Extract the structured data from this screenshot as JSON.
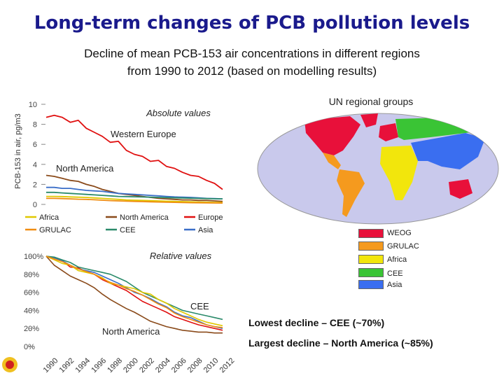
{
  "header": {
    "title": "Long-term changes of PCB pollution levels",
    "subtitle_line1": "Decline of mean PCB-153 air concentrations in different regions",
    "subtitle_line2": "from 1990 to 2012 (based on modelling results)"
  },
  "map": {
    "title": "UN regional groups",
    "legend": [
      {
        "label": "WEOG",
        "color": "#e8103a"
      },
      {
        "label": "GRULAC",
        "color": "#f59a1e"
      },
      {
        "label": "Africa",
        "color": "#f2e60c"
      },
      {
        "label": "CEE",
        "color": "#3ac435"
      },
      {
        "label": "Asia",
        "color": "#3a6ef0"
      }
    ]
  },
  "chart_data": [
    {
      "type": "line",
      "title": "Absolute values",
      "ylabel": "PCB-153 in air, pg/m3",
      "ylim": [
        0,
        10
      ],
      "yticks": [
        "0",
        "2",
        "4",
        "6",
        "8",
        "10"
      ],
      "x": [
        1990,
        1991,
        1992,
        1993,
        1994,
        1995,
        1996,
        1997,
        1998,
        1999,
        2000,
        2001,
        2002,
        2003,
        2004,
        2005,
        2006,
        2007,
        2008,
        2009,
        2010,
        2011,
        2012
      ],
      "annotations": [
        "Western Europe",
        "North America"
      ],
      "series": [
        {
          "name": "Europe",
          "color": "#e01010",
          "values": [
            8.7,
            8.9,
            8.7,
            8.2,
            8.4,
            7.6,
            7.2,
            6.8,
            6.2,
            6.3,
            5.4,
            5.0,
            4.8,
            4.3,
            4.4,
            3.8,
            3.6,
            3.2,
            2.9,
            2.8,
            2.4,
            2.1,
            1.5
          ]
        },
        {
          "name": "North America",
          "color": "#8a4a1a",
          "values": [
            2.9,
            2.8,
            2.6,
            2.4,
            2.3,
            2.0,
            1.8,
            1.5,
            1.3,
            1.1,
            1.0,
            0.9,
            0.8,
            0.7,
            0.6,
            0.55,
            0.5,
            0.45,
            0.45,
            0.4,
            0.4,
            0.35,
            0.3
          ]
        },
        {
          "name": "Asia",
          "color": "#3a6ec8",
          "values": [
            1.7,
            1.7,
            1.6,
            1.6,
            1.5,
            1.4,
            1.35,
            1.3,
            1.2,
            1.1,
            1.05,
            1.0,
            0.95,
            0.9,
            0.85,
            0.8,
            0.75,
            0.72,
            0.7,
            0.65,
            0.6,
            0.58,
            0.55
          ]
        },
        {
          "name": "CEE",
          "color": "#2a8a6a",
          "values": [
            1.2,
            1.2,
            1.15,
            1.1,
            1.05,
            1.0,
            0.95,
            0.9,
            0.85,
            0.8,
            0.78,
            0.76,
            0.74,
            0.72,
            0.7,
            0.68,
            0.66,
            0.64,
            0.62,
            0.6,
            0.58,
            0.56,
            0.55
          ]
        },
        {
          "name": "Africa",
          "color": "#e0c800",
          "values": [
            0.8,
            0.8,
            0.78,
            0.75,
            0.72,
            0.7,
            0.65,
            0.6,
            0.55,
            0.5,
            0.45,
            0.42,
            0.4,
            0.38,
            0.35,
            0.32,
            0.3,
            0.28,
            0.26,
            0.24,
            0.22,
            0.2,
            0.19
          ]
        },
        {
          "name": "GRULAC",
          "color": "#f08c10",
          "values": [
            0.6,
            0.6,
            0.58,
            0.55,
            0.52,
            0.5,
            0.46,
            0.42,
            0.38,
            0.35,
            0.32,
            0.3,
            0.28,
            0.26,
            0.24,
            0.22,
            0.2,
            0.18,
            0.17,
            0.16,
            0.15,
            0.14,
            0.13
          ]
        }
      ]
    },
    {
      "type": "line",
      "title": "Relative values",
      "ylim": [
        0,
        100
      ],
      "yticks": [
        "0%",
        "20%",
        "40%",
        "60%",
        "80%",
        "100%"
      ],
      "xticks": [
        "1990",
        "1992",
        "1994",
        "1996",
        "1998",
        "2000",
        "2002",
        "2004",
        "2006",
        "2008",
        "2010",
        "2012"
      ],
      "x": [
        1990,
        1991,
        1992,
        1993,
        1994,
        1995,
        1996,
        1997,
        1998,
        1999,
        2000,
        2001,
        2002,
        2003,
        2004,
        2005,
        2006,
        2007,
        2008,
        2009,
        2010,
        2011,
        2012
      ],
      "annotations": [
        "CEE",
        "North America"
      ],
      "series": [
        {
          "name": "Europe",
          "color": "#e01010",
          "values": [
            100,
            97,
            95,
            88,
            87,
            83,
            80,
            74,
            70,
            66,
            62,
            56,
            50,
            46,
            42,
            38,
            33,
            30,
            27,
            24,
            22,
            20,
            18
          ]
        },
        {
          "name": "North America",
          "color": "#8a4a1a",
          "values": [
            100,
            90,
            84,
            78,
            74,
            70,
            65,
            58,
            52,
            47,
            42,
            38,
            33,
            28,
            25,
            22,
            20,
            18,
            17,
            16,
            16,
            15,
            15
          ]
        },
        {
          "name": "Asia",
          "color": "#3a6ec8",
          "values": [
            100,
            98,
            95,
            90,
            86,
            84,
            82,
            78,
            74,
            70,
            65,
            60,
            57,
            53,
            48,
            44,
            38,
            34,
            32,
            28,
            24,
            22,
            20
          ]
        },
        {
          "name": "CEE",
          "color": "#2a8a6a",
          "values": [
            100,
            99,
            96,
            93,
            88,
            86,
            84,
            82,
            80,
            76,
            72,
            66,
            60,
            56,
            52,
            48,
            44,
            40,
            38,
            36,
            34,
            32,
            30
          ]
        },
        {
          "name": "Africa",
          "color": "#e0c800",
          "values": [
            100,
            96,
            92,
            90,
            84,
            82,
            80,
            76,
            70,
            68,
            66,
            64,
            60,
            58,
            52,
            48,
            42,
            38,
            34,
            30,
            27,
            25,
            23
          ]
        },
        {
          "name": "GRULAC",
          "color": "#f08c10",
          "values": [
            100,
            97,
            94,
            90,
            86,
            83,
            80,
            75,
            71,
            68,
            64,
            61,
            57,
            52,
            47,
            43,
            37,
            33,
            30,
            27,
            24,
            22,
            21
          ]
        }
      ]
    }
  ],
  "conclusions": {
    "lowest": "Lowest decline – CEE (~70%)",
    "largest": "Largest decline – North America (~85%)"
  }
}
